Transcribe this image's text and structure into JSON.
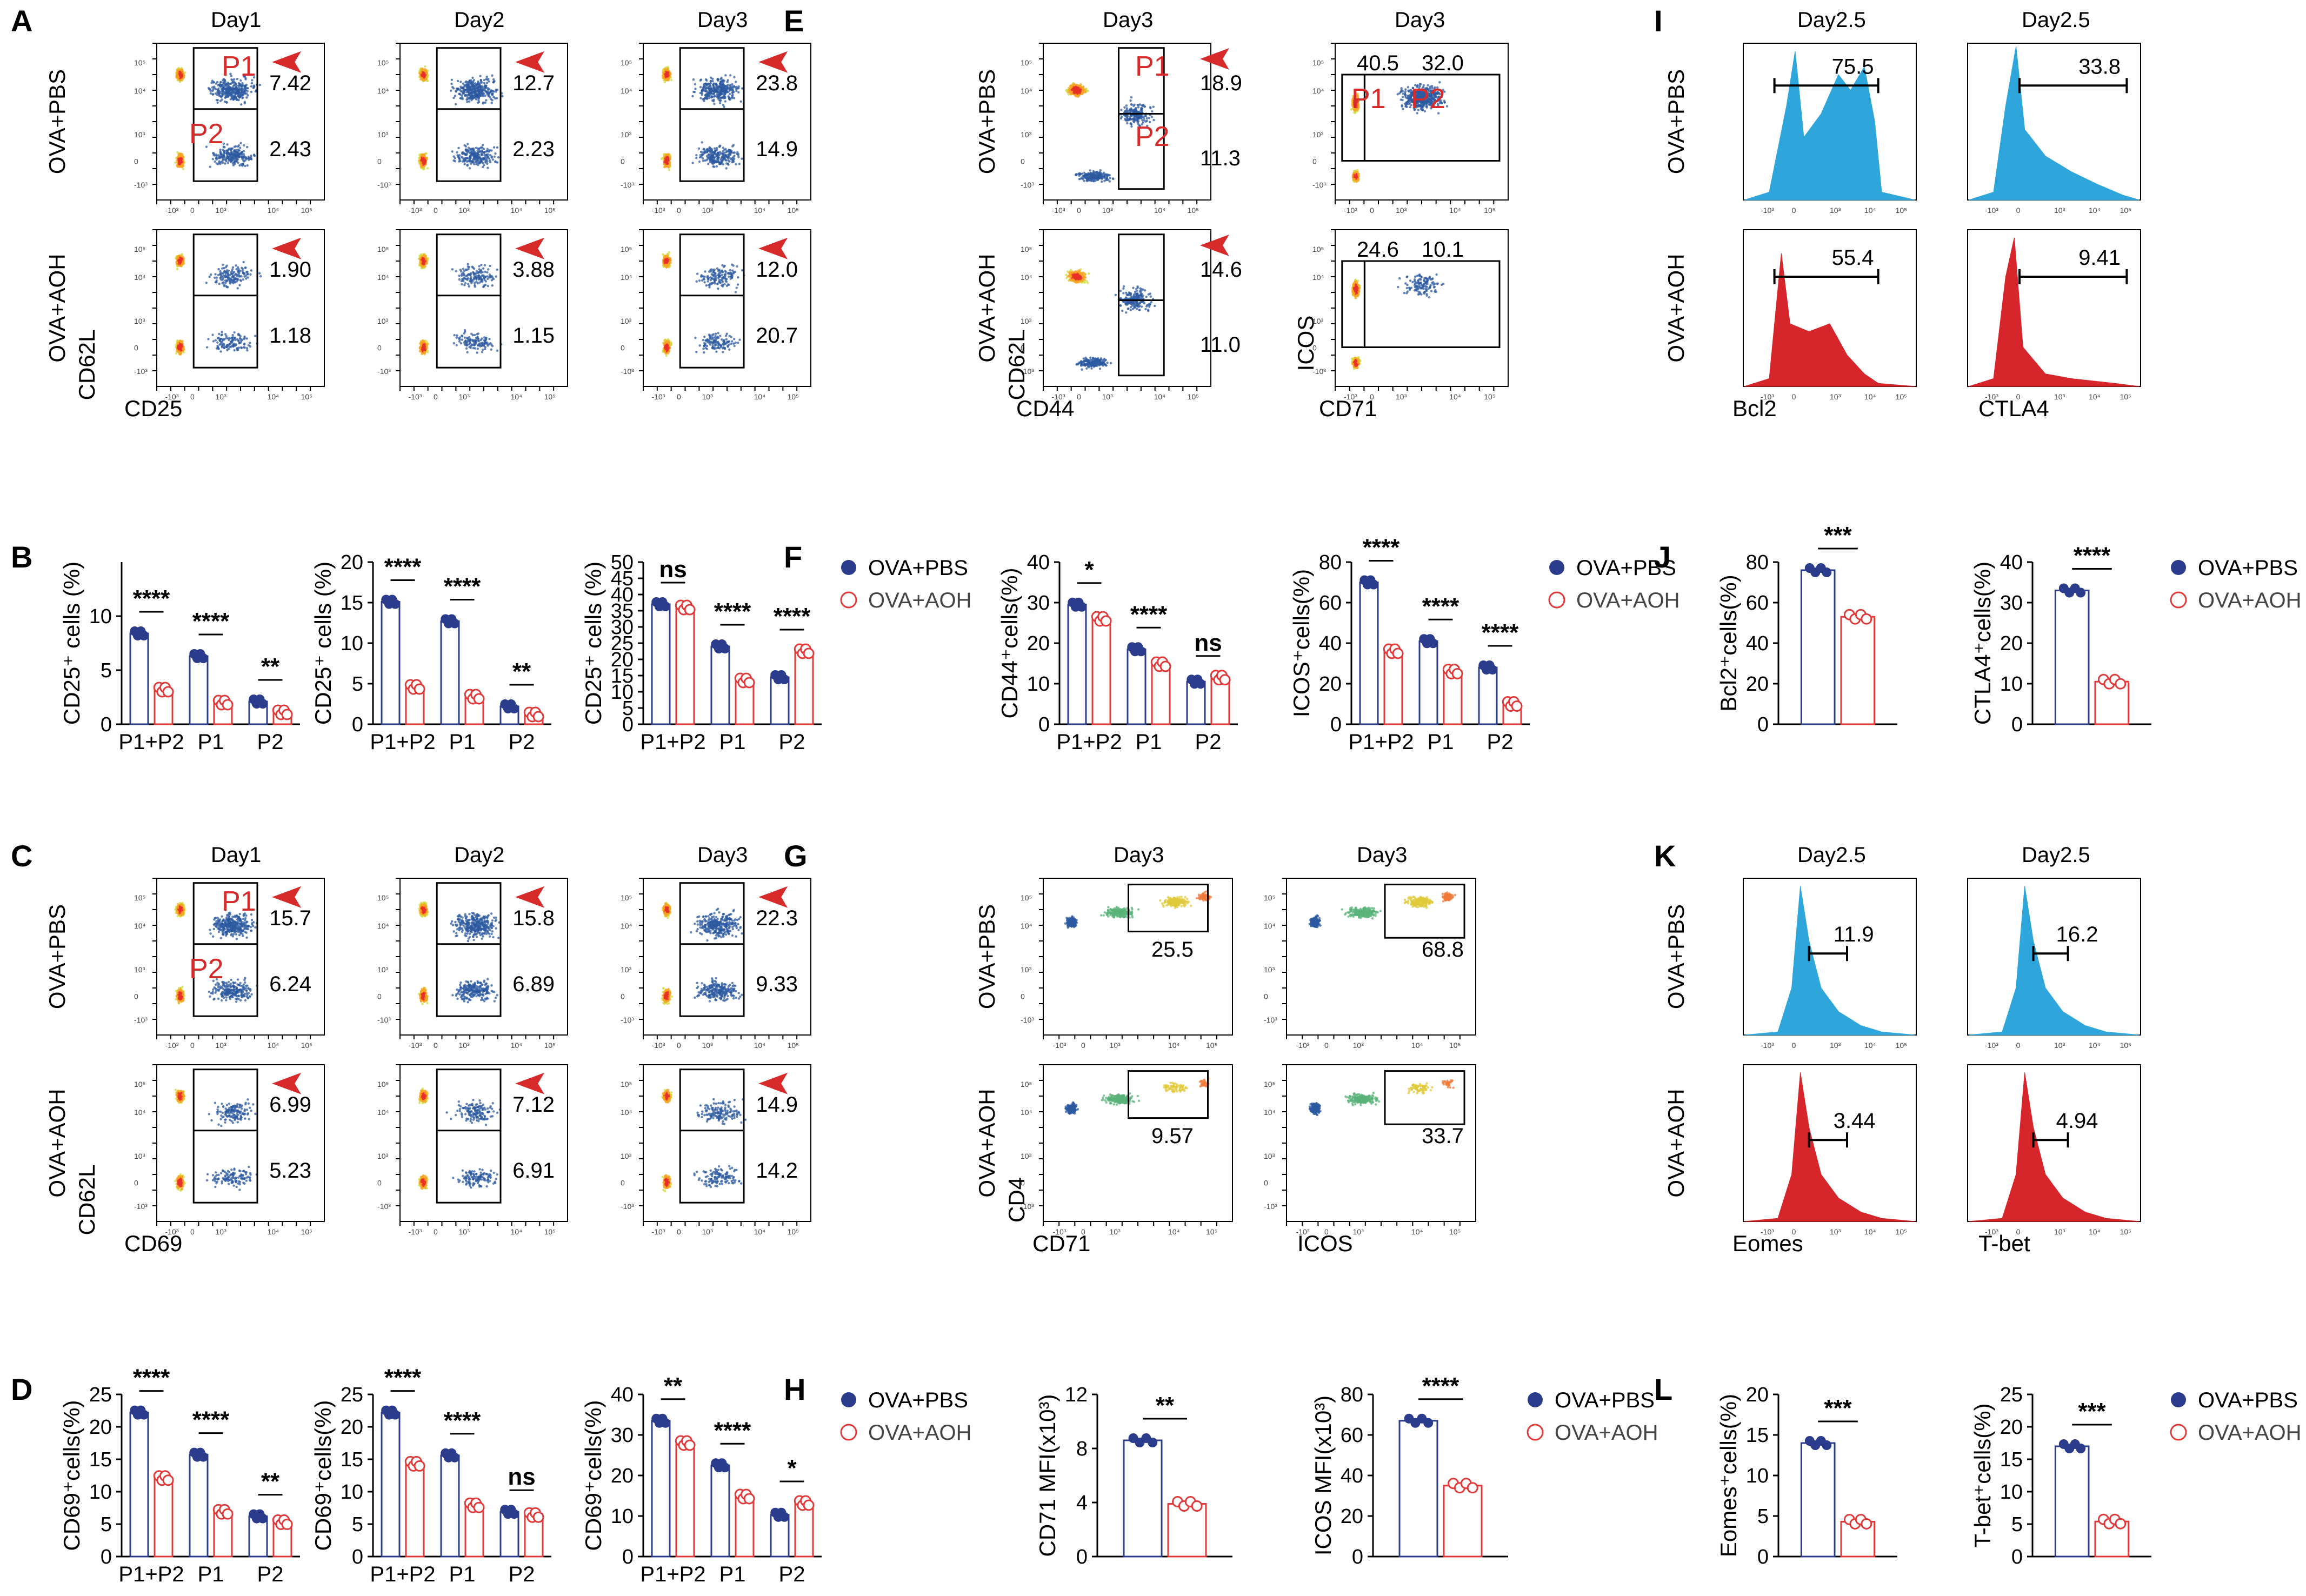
{
  "colors": {
    "pbs": "#2b3c8c",
    "aoh": "#e03a3a",
    "hist_pbs": "#2ea6dc",
    "hist_aoh": "#d6262b",
    "arrow": "#d72b2b"
  },
  "groups": {
    "pbs": "OVA+PBS",
    "aoh": "OVA+AOH"
  },
  "panels": {
    "A": {
      "letter": "A",
      "days": [
        "Day1",
        "Day2",
        "Day3"
      ],
      "xlabel": "CD25",
      "ylabel": "CD62L",
      "gates": {
        "pbs": [
          [
            "7.42",
            "2.43"
          ],
          [
            "12.7",
            "2.23"
          ],
          [
            "23.8",
            "14.9"
          ]
        ],
        "aoh": [
          [
            "1.90",
            "1.18"
          ],
          [
            "3.88",
            "1.15"
          ],
          [
            "12.0",
            "20.7"
          ]
        ]
      },
      "p1": "P1",
      "p2": "P2"
    },
    "C": {
      "letter": "C",
      "days": [
        "Day1",
        "Day2",
        "Day3"
      ],
      "xlabel": "CD69",
      "ylabel": "CD62L",
      "gates": {
        "pbs": [
          [
            "15.7",
            "6.24"
          ],
          [
            "15.8",
            "6.89"
          ],
          [
            "22.3",
            "9.33"
          ]
        ],
        "aoh": [
          [
            "6.99",
            "5.23"
          ],
          [
            "7.12",
            "6.91"
          ],
          [
            "14.9",
            "14.2"
          ]
        ]
      },
      "p1": "P1",
      "p2": "P2"
    },
    "E": {
      "letter": "E",
      "days": [
        "Day3",
        "Day3"
      ],
      "x1": "CD44",
      "y1": "CD62L",
      "x2": "CD71",
      "y2": "ICOS",
      "gates_cd44": {
        "pbs": [
          "18.9",
          "11.3"
        ],
        "aoh": [
          "14.6",
          "11.0"
        ]
      },
      "gates_icos": {
        "pbs": [
          "40.5",
          "32.0"
        ],
        "aoh": [
          "24.6",
          "10.1"
        ]
      },
      "p1": "P1",
      "p2": "P2"
    },
    "G": {
      "letter": "G",
      "days": [
        "Day3",
        "Day3"
      ],
      "x1": "CD71",
      "x2": "ICOS",
      "ylabel": "CD4",
      "gates": {
        "pbs": [
          "25.5",
          "68.8"
        ],
        "aoh": [
          "9.57",
          "33.7"
        ]
      }
    },
    "I": {
      "letter": "I",
      "days": [
        "Day2.5",
        "Day2.5"
      ],
      "x1": "Bcl2",
      "x2": "CTLA4",
      "gates": {
        "pbs": [
          "75.5",
          "33.8"
        ],
        "aoh": [
          "55.4",
          "9.41"
        ]
      }
    },
    "K": {
      "letter": "K",
      "days": [
        "Day2.5",
        "Day2.5"
      ],
      "x1": "Eomes",
      "x2": "T-bet",
      "gates": {
        "pbs": [
          "11.9",
          "16.2"
        ],
        "aoh": [
          "3.44",
          "4.94"
        ]
      }
    }
  },
  "ticks": {
    "t105": "10⁵",
    "t104": "10⁴",
    "t103": "10³",
    "t0": "0",
    "tm103": "-10³"
  },
  "chart_data": [
    {
      "id": "B1",
      "letter": "B",
      "type": "bar",
      "ylabel": "CD25⁺ cells (%)",
      "ylim": [
        0,
        15
      ],
      "yticks": [
        0,
        5,
        10
      ],
      "categories": [
        "P1+P2",
        "P1",
        "P2"
      ],
      "series": [
        {
          "name": "OVA+PBS",
          "values": [
            8.4,
            6.3,
            2.1
          ]
        },
        {
          "name": "OVA+AOH",
          "values": [
            3.2,
            2.0,
            1.1
          ]
        }
      ],
      "sig": [
        "****",
        "****",
        "**"
      ]
    },
    {
      "id": "B2",
      "letter": "",
      "type": "bar",
      "ylabel": "CD25⁺ cells (%)",
      "ylim": [
        0,
        20
      ],
      "yticks": [
        0,
        5,
        10,
        15,
        20
      ],
      "categories": [
        "P1+P2",
        "P1",
        "P2"
      ],
      "series": [
        {
          "name": "OVA+PBS",
          "values": [
            15.1,
            12.7,
            2.2
          ]
        },
        {
          "name": "OVA+AOH",
          "values": [
            4.6,
            3.4,
            1.2
          ]
        }
      ],
      "sig": [
        "****",
        "****",
        "**"
      ]
    },
    {
      "id": "B3",
      "letter": "",
      "type": "bar",
      "ylabel": "CD25⁺ cells (%)",
      "ylim": [
        0,
        50
      ],
      "yticks": [
        0,
        5,
        10,
        15,
        20,
        25,
        30,
        35,
        40,
        45,
        50
      ],
      "categories": [
        "P1+P2",
        "P1",
        "P2"
      ],
      "series": [
        {
          "name": "OVA+PBS",
          "values": [
            37,
            24,
            14.5
          ]
        },
        {
          "name": "OVA+AOH",
          "values": [
            36,
            13.5,
            22.5
          ]
        }
      ],
      "sig": [
        "ns",
        "****",
        "****"
      ],
      "legend": true
    },
    {
      "id": "D1",
      "letter": "D",
      "type": "bar",
      "ylabel": "CD69⁺cells(%)",
      "ylim": [
        0,
        25
      ],
      "yticks": [
        0,
        5,
        10,
        15,
        20,
        25
      ],
      "categories": [
        "P1+P2",
        "P1",
        "P2"
      ],
      "series": [
        {
          "name": "OVA+PBS",
          "values": [
            22.2,
            15.7,
            6.2
          ]
        },
        {
          "name": "OVA+AOH",
          "values": [
            12.1,
            6.9,
            5.3
          ]
        }
      ],
      "sig": [
        "****",
        "****",
        "**"
      ]
    },
    {
      "id": "D2",
      "letter": "",
      "type": "bar",
      "ylabel": "CD69⁺cells(%)",
      "ylim": [
        0,
        25
      ],
      "yticks": [
        0,
        5,
        10,
        15,
        20,
        25
      ],
      "categories": [
        "P1+P2",
        "P1",
        "P2"
      ],
      "series": [
        {
          "name": "OVA+PBS",
          "values": [
            22.2,
            15.6,
            6.9
          ]
        },
        {
          "name": "OVA+AOH",
          "values": [
            14.3,
            7.9,
            6.4
          ]
        }
      ],
      "sig": [
        "****",
        "****",
        "ns"
      ]
    },
    {
      "id": "D3",
      "letter": "",
      "type": "bar",
      "ylabel": "CD69⁺cells(%)",
      "ylim": [
        0,
        40
      ],
      "yticks": [
        0,
        10,
        20,
        30,
        40
      ],
      "categories": [
        "P1+P2",
        "P1",
        "P2"
      ],
      "series": [
        {
          "name": "OVA+PBS",
          "values": [
            33.5,
            22.5,
            10.3
          ]
        },
        {
          "name": "OVA+AOH",
          "values": [
            28,
            14.8,
            13.2
          ]
        }
      ],
      "sig": [
        "**",
        "****",
        "*"
      ],
      "legend": true
    },
    {
      "id": "F1",
      "letter": "F",
      "type": "bar",
      "ylabel": "CD44⁺cells(%)",
      "ylim": [
        0,
        40
      ],
      "yticks": [
        0,
        10,
        20,
        30,
        40
      ],
      "categories": [
        "P1+P2",
        "P1",
        "P2"
      ],
      "series": [
        {
          "name": "OVA+PBS",
          "values": [
            29.5,
            18.5,
            10.5
          ]
        },
        {
          "name": "OVA+AOH",
          "values": [
            26,
            14.8,
            11.5
          ]
        }
      ],
      "sig": [
        "*",
        "****",
        "ns"
      ]
    },
    {
      "id": "F2",
      "letter": "",
      "type": "bar",
      "ylabel": "ICOS⁺cells(%)",
      "ylim": [
        0,
        80
      ],
      "yticks": [
        0,
        20,
        40,
        60,
        80
      ],
      "categories": [
        "P1+P2",
        "P1",
        "P2"
      ],
      "series": [
        {
          "name": "OVA+PBS",
          "values": [
            70,
            41,
            28
          ]
        },
        {
          "name": "OVA+AOH",
          "values": [
            36,
            26,
            10
          ]
        }
      ],
      "sig": [
        "****",
        "****",
        "****"
      ],
      "legend": true
    },
    {
      "id": "H1",
      "letter": "H",
      "type": "bar",
      "ylabel": "CD71 MFI(x10³)",
      "ylim": [
        0,
        12
      ],
      "yticks": [
        0,
        4,
        8,
        12
      ],
      "categories": [
        ""
      ],
      "series": [
        {
          "name": "OVA+PBS",
          "values": [
            8.6
          ]
        },
        {
          "name": "OVA+AOH",
          "values": [
            3.9
          ]
        }
      ],
      "sig": [
        "**"
      ]
    },
    {
      "id": "H2",
      "letter": "",
      "type": "bar",
      "ylabel": "ICOS MFI(x10³)",
      "ylim": [
        0,
        80
      ],
      "yticks": [
        0,
        20,
        40,
        60,
        80
      ],
      "categories": [
        ""
      ],
      "series": [
        {
          "name": "OVA+PBS",
          "values": [
            67
          ]
        },
        {
          "name": "OVA+AOH",
          "values": [
            35
          ]
        }
      ],
      "sig": [
        "****"
      ],
      "legend": true
    },
    {
      "id": "J1",
      "letter": "J",
      "type": "bar",
      "ylabel": "Bcl2⁺cells(%)",
      "ylim": [
        0,
        80
      ],
      "yticks": [
        0,
        20,
        40,
        60,
        80
      ],
      "categories": [
        ""
      ],
      "series": [
        {
          "name": "OVA+PBS",
          "values": [
            76
          ]
        },
        {
          "name": "OVA+AOH",
          "values": [
            53
          ]
        }
      ],
      "sig": [
        "***"
      ]
    },
    {
      "id": "J2",
      "letter": "",
      "type": "bar",
      "ylabel": "CTLA4⁺cells(%)",
      "ylim": [
        0,
        40
      ],
      "yticks": [
        0,
        10,
        20,
        30,
        40
      ],
      "categories": [
        ""
      ],
      "series": [
        {
          "name": "OVA+PBS",
          "values": [
            33
          ]
        },
        {
          "name": "OVA+AOH",
          "values": [
            10.5
          ]
        }
      ],
      "sig": [
        "****"
      ],
      "legend": true
    },
    {
      "id": "L1",
      "letter": "L",
      "type": "bar",
      "ylabel": "Eomes⁺cells(%)",
      "ylim": [
        0,
        20
      ],
      "yticks": [
        0,
        5,
        10,
        15,
        20
      ],
      "categories": [
        ""
      ],
      "series": [
        {
          "name": "OVA+PBS",
          "values": [
            14
          ]
        },
        {
          "name": "OVA+AOH",
          "values": [
            4.3
          ]
        }
      ],
      "sig": [
        "***"
      ]
    },
    {
      "id": "L2",
      "letter": "",
      "type": "bar",
      "ylabel": "T-bet⁺cells(%)",
      "ylim": [
        0,
        25
      ],
      "yticks": [
        0,
        5,
        10,
        15,
        20,
        25
      ],
      "categories": [
        ""
      ],
      "series": [
        {
          "name": "OVA+PBS",
          "values": [
            17
          ]
        },
        {
          "name": "OVA+AOH",
          "values": [
            5.4
          ]
        }
      ],
      "sig": [
        "***"
      ],
      "legend": true
    }
  ]
}
